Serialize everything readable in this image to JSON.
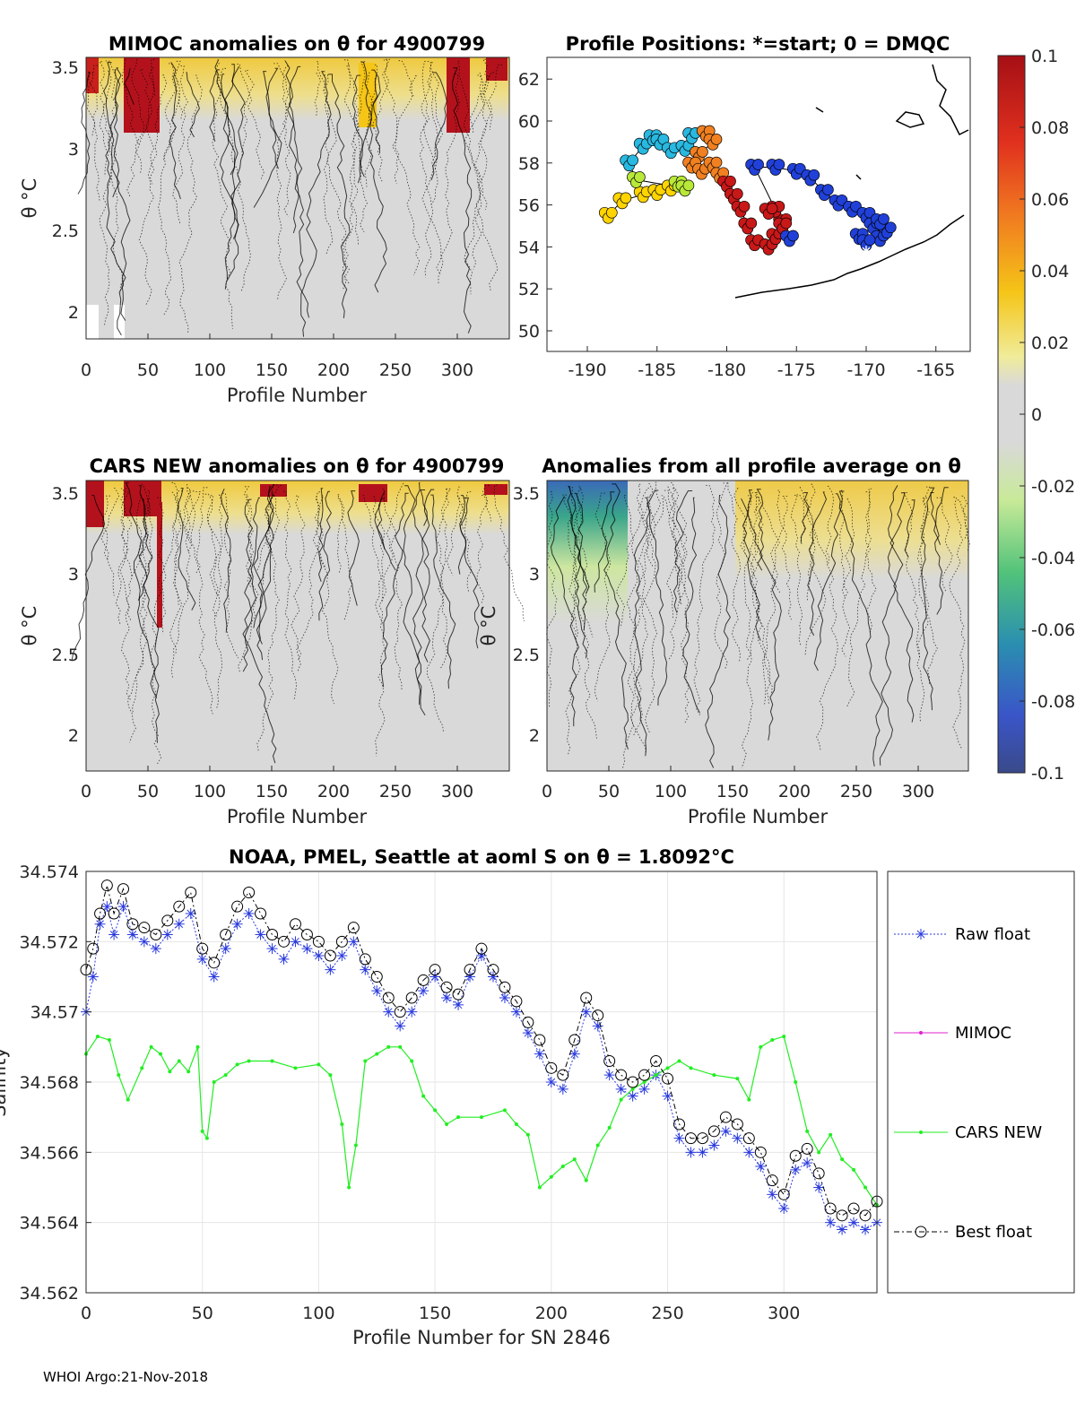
{
  "footer": "WHOI Argo:21-Nov-2018",
  "colors": {
    "raw": "#2b3bdc",
    "mimoc": "#e020d0",
    "cars": "#22ee22",
    "best": "#000000",
    "grid": "#e6e6e6",
    "field": "#d9d9d9"
  },
  "panel_mimoc": {
    "title": "MIMOC anomalies on θ  for 4900799",
    "ylabel": "θ °C",
    "xlabel": "Profile Number",
    "xticks": [
      "0",
      "50",
      "100",
      "150",
      "200",
      "250",
      "300"
    ],
    "yticks": [
      "2",
      "2.5",
      "3",
      "3.5"
    ]
  },
  "panel_map": {
    "title": "Profile Positions: *=start; 0 = DMQC",
    "xticks": [
      "-190",
      "-185",
      "-180",
      "-175",
      "-170",
      "-165"
    ],
    "yticks": [
      "50",
      "52",
      "54",
      "56",
      "58",
      "60",
      "62"
    ]
  },
  "panel_cars": {
    "title": "CARS NEW anomalies on θ for 4900799",
    "ylabel": "θ °C",
    "xlabel": "Profile Number",
    "xticks": [
      "0",
      "50",
      "100",
      "150",
      "200",
      "250",
      "300"
    ],
    "yticks": [
      "2",
      "2.5",
      "3",
      "3.5"
    ]
  },
  "panel_avg": {
    "title": "Anomalies from all profile average on θ",
    "ylabel": "θ °C",
    "xlabel": "Profile Number",
    "xticks": [
      "0",
      "50",
      "100",
      "150",
      "200",
      "250",
      "300"
    ],
    "yticks": [
      "2",
      "2.5",
      "3",
      "3.5"
    ]
  },
  "colorbar": {
    "ticks": [
      "0.1",
      "0.08",
      "0.06",
      "0.04",
      "0.02",
      "0",
      "-0.02",
      "-0.04",
      "-0.06",
      "-0.08",
      "-0.1"
    ]
  },
  "chart_data": {
    "type": "line",
    "title": "NOAA, PMEL, Seattle at aoml S on θ = 1.8092°C",
    "xlabel": "Profile Number for SN 2846",
    "ylabel": "Salinity",
    "xlim": [
      0,
      340
    ],
    "ylim": [
      34.562,
      34.574
    ],
    "xticks": [
      "0",
      "50",
      "100",
      "150",
      "200",
      "250",
      "300"
    ],
    "yticks": [
      "34.562",
      "34.564",
      "34.566",
      "34.568",
      "34.57",
      "34.572",
      "34.574"
    ],
    "legend": [
      "Raw float",
      "MIMOC",
      "CARS NEW",
      "Best float"
    ],
    "series": [
      {
        "name": "Raw float",
        "x": [
          0,
          3,
          6,
          9,
          12,
          16,
          20,
          25,
          30,
          35,
          40,
          45,
          50,
          55,
          60,
          65,
          70,
          75,
          80,
          85,
          90,
          95,
          100,
          105,
          110,
          115,
          120,
          125,
          130,
          135,
          140,
          145,
          150,
          155,
          160,
          165,
          170,
          175,
          180,
          185,
          190,
          195,
          200,
          205,
          210,
          215,
          220,
          225,
          230,
          235,
          240,
          245,
          250,
          255,
          260,
          265,
          270,
          275,
          280,
          285,
          290,
          295,
          300,
          305,
          310,
          315,
          320,
          325,
          330,
          335,
          340
        ],
        "y": [
          34.57,
          34.571,
          34.5725,
          34.573,
          34.5722,
          34.573,
          34.5722,
          34.572,
          34.5718,
          34.5722,
          34.5725,
          34.5728,
          34.5715,
          34.571,
          34.5718,
          34.5725,
          34.5728,
          34.5722,
          34.5718,
          34.5715,
          34.572,
          34.5718,
          34.5716,
          34.5712,
          34.5716,
          34.572,
          34.5712,
          34.5706,
          34.57,
          34.5696,
          34.57,
          34.5706,
          34.571,
          34.5704,
          34.5702,
          34.571,
          34.5716,
          34.571,
          34.5704,
          34.57,
          34.5694,
          34.5688,
          34.568,
          34.5678,
          34.5688,
          34.57,
          34.5696,
          34.5682,
          34.5678,
          34.5676,
          34.5678,
          34.5682,
          34.5676,
          34.5664,
          34.566,
          34.566,
          34.5662,
          34.5666,
          34.5664,
          34.566,
          34.5656,
          34.5648,
          34.5644,
          34.5655,
          34.5657,
          34.565,
          34.564,
          34.5638,
          34.564,
          34.5638,
          34.564
        ]
      },
      {
        "name": "MIMOC",
        "x": [],
        "y": []
      },
      {
        "name": "CARS NEW",
        "x": [
          0,
          5,
          10,
          14,
          18,
          24,
          28,
          32,
          36,
          40,
          44,
          48,
          50,
          52,
          55,
          60,
          65,
          70,
          80,
          90,
          100,
          105,
          110,
          113,
          116,
          120,
          125,
          130,
          135,
          140,
          145,
          150,
          155,
          160,
          170,
          180,
          185,
          190,
          195,
          200,
          205,
          210,
          215,
          220,
          225,
          230,
          235,
          240,
          245,
          250,
          255,
          260,
          270,
          280,
          285,
          290,
          295,
          300,
          305,
          310,
          315,
          320,
          325,
          330,
          335,
          340
        ],
        "y": [
          34.5688,
          34.5693,
          34.5692,
          34.5682,
          34.5675,
          34.5684,
          34.569,
          34.5688,
          34.5683,
          34.5686,
          34.5683,
          34.569,
          34.5666,
          34.5664,
          34.568,
          34.5682,
          34.5685,
          34.5686,
          34.5686,
          34.5684,
          34.5685,
          34.5682,
          34.5668,
          34.565,
          34.5662,
          34.5686,
          34.5688,
          34.569,
          34.569,
          34.5686,
          34.5676,
          34.5672,
          34.5668,
          34.567,
          34.567,
          34.5672,
          34.5668,
          34.5665,
          34.565,
          34.5653,
          34.5656,
          34.5658,
          34.5652,
          34.5662,
          34.5667,
          34.5675,
          34.5678,
          34.568,
          34.5682,
          34.5684,
          34.5686,
          34.5684,
          34.5682,
          34.5681,
          34.5675,
          34.569,
          34.5692,
          34.5693,
          34.568,
          34.5666,
          34.566,
          34.5665,
          34.5658,
          34.5655,
          34.565,
          34.5645
        ]
      },
      {
        "name": "Best float",
        "x": [
          0,
          3,
          6,
          9,
          12,
          16,
          20,
          25,
          30,
          35,
          40,
          45,
          50,
          55,
          60,
          65,
          70,
          75,
          80,
          85,
          90,
          95,
          100,
          105,
          110,
          115,
          120,
          125,
          130,
          135,
          140,
          145,
          150,
          155,
          160,
          165,
          170,
          175,
          180,
          185,
          190,
          195,
          200,
          205,
          210,
          215,
          220,
          225,
          230,
          235,
          240,
          245,
          250,
          255,
          260,
          265,
          270,
          275,
          280,
          285,
          290,
          295,
          300,
          305,
          310,
          315,
          320,
          325,
          330,
          335,
          340
        ],
        "y": [
          34.5712,
          34.5718,
          34.5728,
          34.5736,
          34.5728,
          34.5735,
          34.5725,
          34.5724,
          34.5722,
          34.5726,
          34.573,
          34.5734,
          34.5718,
          34.5714,
          34.5722,
          34.573,
          34.5734,
          34.5728,
          34.5722,
          34.572,
          34.5725,
          34.5722,
          34.572,
          34.5716,
          34.572,
          34.5724,
          34.5715,
          34.571,
          34.5704,
          34.57,
          34.5704,
          34.5709,
          34.5712,
          34.5707,
          34.5705,
          34.5712,
          34.5718,
          34.5712,
          34.5707,
          34.5703,
          34.5697,
          34.5692,
          34.5684,
          34.5682,
          34.5692,
          34.5704,
          34.5699,
          34.5686,
          34.5682,
          34.568,
          34.5682,
          34.5686,
          34.5681,
          34.5668,
          34.5664,
          34.5664,
          34.5666,
          34.567,
          34.5668,
          34.5664,
          34.566,
          34.5652,
          34.5648,
          34.5659,
          34.5661,
          34.5654,
          34.5644,
          34.5642,
          34.5644,
          34.5642,
          34.5646
        ]
      }
    ]
  }
}
